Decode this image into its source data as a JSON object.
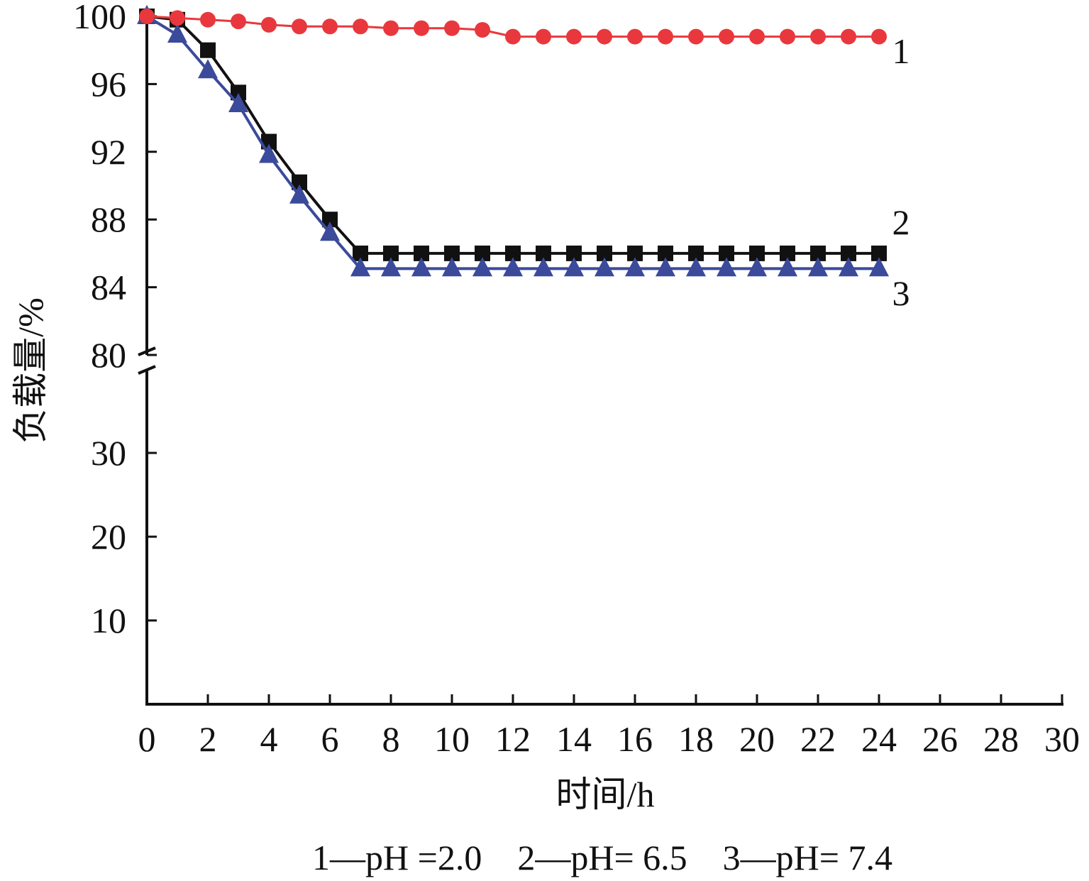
{
  "chart_data": {
    "type": "line",
    "xlabel": "时间/h",
    "ylabel": "负载量/%",
    "xlim": [
      0,
      30
    ],
    "xticks": [
      "0",
      "2",
      "4",
      "6",
      "8",
      "10",
      "12",
      "14",
      "16",
      "18",
      "20",
      "22",
      "24",
      "26",
      "28",
      "30"
    ],
    "y_axis_break": true,
    "yticks_lower": [
      "10",
      "20",
      "30"
    ],
    "yticks_upper": [
      "80",
      "84",
      "88",
      "92",
      "96",
      "100"
    ],
    "ylim_lower": [
      0,
      40
    ],
    "ylim_upper": [
      80,
      100
    ],
    "grid": false,
    "legend": "1—pH =2.0　2—pH= 6.5　3—pH= 7.4",
    "series": [
      {
        "label": "1",
        "color": "#e8383d",
        "marker": "circle",
        "x": [
          0,
          1,
          2,
          3,
          4,
          5,
          6,
          7,
          8,
          9,
          10,
          11,
          12,
          13,
          14,
          15,
          16,
          17,
          18,
          19,
          20,
          21,
          22,
          23,
          24
        ],
        "y": [
          100,
          99.9,
          99.8,
          99.7,
          99.5,
          99.4,
          99.4,
          99.4,
          99.3,
          99.3,
          99.3,
          99.2,
          98.8,
          98.8,
          98.8,
          98.8,
          98.8,
          98.8,
          98.8,
          98.8,
          98.8,
          98.8,
          98.8,
          98.8,
          98.8
        ]
      },
      {
        "label": "2",
        "color": "#111111",
        "marker": "square",
        "x": [
          0,
          1,
          2,
          3,
          4,
          5,
          6,
          7,
          8,
          9,
          10,
          11,
          12,
          13,
          14,
          15,
          16,
          17,
          18,
          19,
          20,
          21,
          22,
          23,
          24
        ],
        "y": [
          100,
          99.8,
          98,
          95.5,
          92.6,
          90.2,
          88,
          86,
          86,
          86,
          86,
          86,
          86,
          86,
          86,
          86,
          86,
          86,
          86,
          86,
          86,
          86,
          86,
          86,
          86
        ]
      },
      {
        "label": "3",
        "color": "#3b4a9a",
        "marker": "triangle",
        "x": [
          0,
          1,
          2,
          3,
          4,
          5,
          6,
          7,
          8,
          9,
          10,
          11,
          12,
          13,
          14,
          15,
          16,
          17,
          18,
          19,
          20,
          21,
          22,
          23,
          24
        ],
        "y": [
          100,
          98.9,
          96.8,
          94.8,
          91.8,
          89.4,
          87.2,
          85.1,
          85.1,
          85.1,
          85.1,
          85.1,
          85.1,
          85.1,
          85.1,
          85.1,
          85.1,
          85.1,
          85.1,
          85.1,
          85.1,
          85.1,
          85.1,
          85.1,
          85.1
        ]
      }
    ]
  }
}
